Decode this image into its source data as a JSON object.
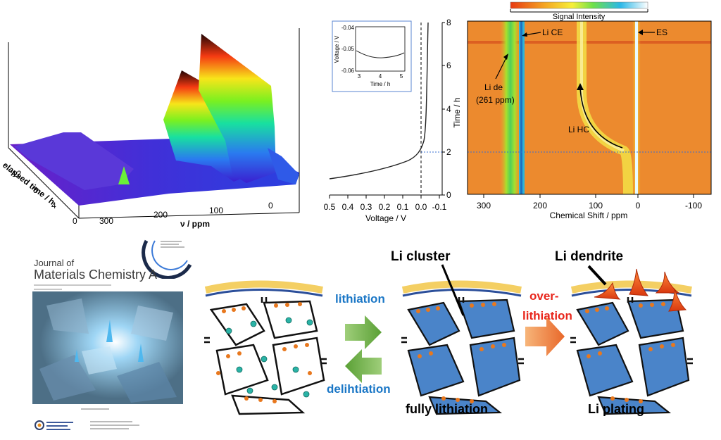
{
  "panel3d": {
    "axis_label_time": "elapsed time / h",
    "axis_label_freq": "ν / ppm",
    "time_ticks": [
      "12",
      "8",
      "4",
      "0"
    ],
    "freq_ticks": [
      "300",
      "200",
      "100",
      "0"
    ]
  },
  "voltage_panel": {
    "xlabel": "Voltage / V",
    "ylabel": "Time / h",
    "x_ticks": [
      "0.5",
      "0.4",
      "0.3",
      "0.2",
      "0.1",
      "0.0",
      "-0.1"
    ],
    "y_ticks": [
      "0",
      "2",
      "4",
      "6",
      "8"
    ],
    "inset": {
      "xlabel": "Time / h",
      "ylabel": "Voltage / V",
      "x_ticks": [
        "3",
        "4",
        "5"
      ],
      "y_ticks": [
        "-0.04",
        "-0.05",
        "-0.06"
      ]
    }
  },
  "heatmap": {
    "colorbar_label": "Signal Intensity",
    "xlabel": "Chemical Shift / ppm",
    "x_ticks": [
      "300",
      "200",
      "100",
      "0",
      "-100"
    ],
    "annotations": {
      "li_ce": "Li CE",
      "es": "ES",
      "li_de_1": "Li de",
      "li_de_2": "(261 ppm)",
      "li_hc": "Li HC"
    }
  },
  "cover": {
    "journal_of": "Journal of",
    "journal_name": "Materials Chemistry A"
  },
  "scheme": {
    "lithiation": "lithiation",
    "delithiation": "delihtiation",
    "over_1": "over-",
    "over_2": "lithiation",
    "li_cluster": "Li cluster",
    "li_dendrite": "Li dendrite",
    "fully_lithiation": "fully lithiation",
    "li_plating": "Li plating"
  },
  "colors": {
    "blue_text": "#1b77c6",
    "red_text": "#e8261c",
    "green_arrow": "#6aa84f",
    "orange_arrow": "#ef7b3a",
    "cluster_blue": "#4a84c9",
    "dendrite": "#f04a12",
    "sei_yellow": "#f4cf63"
  }
}
